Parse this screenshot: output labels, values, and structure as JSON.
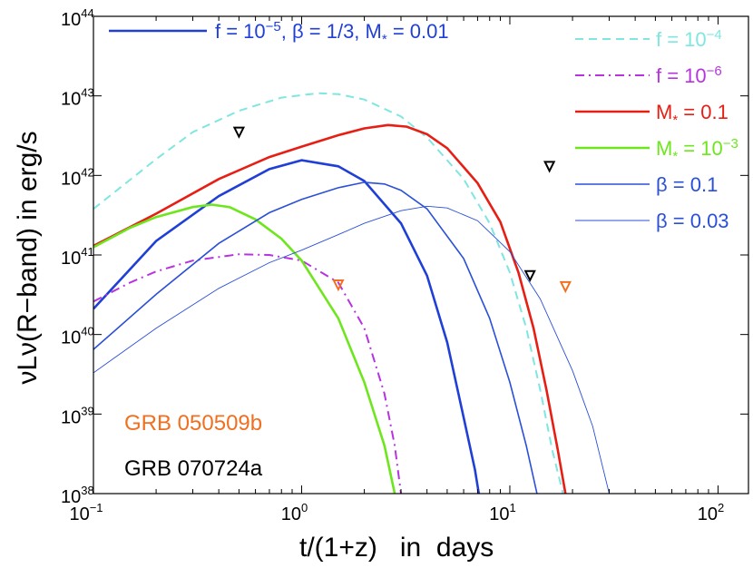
{
  "chart_data": {
    "type": "line",
    "title": "",
    "xlabel": "t/(1+z)   in  days",
    "ylabel": "νLν(R−band) in erg/s",
    "xscale": "log",
    "yscale": "log",
    "xlim": [
      0.1,
      140
    ],
    "ylim": [
      1e+38,
      1e+44
    ],
    "x_ticks": [
      {
        "value": 0.1,
        "base": "10",
        "exp": "−1"
      },
      {
        "value": 1,
        "base": "10",
        "exp": "0"
      },
      {
        "value": 10,
        "base": "10",
        "exp": "1"
      },
      {
        "value": 100,
        "base": "10",
        "exp": "2"
      }
    ],
    "y_ticks": [
      {
        "value": 1e+38,
        "base": "10",
        "exp": "38"
      },
      {
        "value": 1e+39,
        "base": "10",
        "exp": "39"
      },
      {
        "value": 1e+40,
        "base": "10",
        "exp": "40"
      },
      {
        "value": 1e+41,
        "base": "10",
        "exp": "41"
      },
      {
        "value": 1e+42,
        "base": "10",
        "exp": "42"
      },
      {
        "value": 1e+43,
        "base": "10",
        "exp": "43"
      },
      {
        "value": 1e+44,
        "base": "10",
        "exp": "44"
      }
    ],
    "legend_placement": "top-right",
    "series": [
      {
        "id": "fiducial",
        "name": "f = 10−5, β = 1/3, M* = 0.01",
        "legend": {
          "parts": [
            {
              "t": "f = 10"
            },
            {
              "t": "−5",
              "sup": true
            },
            {
              "t": ", β = 1/3, M"
            },
            {
              "t": "*",
              "sub": true
            },
            {
              "t": " = 0.01"
            }
          ]
        },
        "color": "#1f3fd6",
        "style": "solid",
        "weight": "thick",
        "points": [
          [
            0.1,
            2.1e+40
          ],
          [
            0.2,
            1.5e+41
          ],
          [
            0.4,
            5.5e+41
          ],
          [
            0.7,
            1.2e+42
          ],
          [
            1.0,
            1.55e+42
          ],
          [
            1.5,
            1.3e+42
          ],
          [
            2.0,
            8.5e+41
          ],
          [
            3.0,
            2.5e+41
          ],
          [
            4.0,
            5.5e+40
          ],
          [
            5.0,
            8e+39
          ],
          [
            6.0,
            9e+38
          ],
          [
            6.8,
            2e+38
          ],
          [
            7.1,
            1e+38
          ]
        ]
      },
      {
        "id": "f1e-4",
        "name": "f = 10−4",
        "legend": {
          "parts": [
            {
              "t": "f = 10"
            },
            {
              "t": "−4",
              "sup": true
            }
          ]
        },
        "color": "#7fe6e0",
        "style": "dashed",
        "weight": "medium",
        "points": [
          [
            0.1,
            3.8e+41
          ],
          [
            0.2,
            1.6e+42
          ],
          [
            0.3,
            3.5e+42
          ],
          [
            0.5,
            6.5e+42
          ],
          [
            0.8,
            9.5e+42
          ],
          [
            1.2,
            1.08e+43
          ],
          [
            1.5,
            1.05e+43
          ],
          [
            2.0,
            9e+42
          ],
          [
            3.0,
            5.5e+42
          ],
          [
            4.0,
            3e+42
          ],
          [
            6.0,
            9e+41
          ],
          [
            8.0,
            2.5e+41
          ],
          [
            10.0,
            6e+40
          ],
          [
            12.0,
            1.2e+40
          ],
          [
            14.0,
            2e+39
          ],
          [
            16.0,
            3.5e+38
          ],
          [
            18.0,
            1e+38
          ]
        ]
      },
      {
        "id": "f1e-6",
        "name": "f = 10−6",
        "legend": {
          "parts": [
            {
              "t": "f = 10"
            },
            {
              "t": "−6",
              "sup": true
            }
          ]
        },
        "color": "#b833e0",
        "style": "dashdot",
        "weight": "medium",
        "points": [
          [
            0.1,
            2.6e+40
          ],
          [
            0.15,
            4.5e+40
          ],
          [
            0.2,
            6.2e+40
          ],
          [
            0.3,
            8.5e+40
          ],
          [
            0.5,
            1.02e+41
          ],
          [
            0.7,
            1e+41
          ],
          [
            1.0,
            8.5e+40
          ],
          [
            1.5,
            4.5e+40
          ],
          [
            2.0,
            1.2e+40
          ],
          [
            2.5,
            1.8e+39
          ],
          [
            2.8,
            4e+38
          ],
          [
            3.0,
            1e+38
          ]
        ]
      },
      {
        "id": "M0.1",
        "name": "M* = 0.1",
        "legend": {
          "parts": [
            {
              "t": "M"
            },
            {
              "t": "*",
              "sub": true
            },
            {
              "t": " = 0.1"
            }
          ]
        },
        "color": "#e61e14",
        "style": "solid",
        "weight": "thick",
        "points": [
          [
            0.1,
            1.3e+41
          ],
          [
            0.2,
            3.3e+41
          ],
          [
            0.4,
            9e+41
          ],
          [
            0.7,
            1.7e+42
          ],
          [
            1.0,
            2.3e+42
          ],
          [
            1.5,
            3.2e+42
          ],
          [
            2.0,
            3.9e+42
          ],
          [
            2.6,
            4.3e+42
          ],
          [
            3.2,
            4.1e+42
          ],
          [
            4.0,
            3.3e+42
          ],
          [
            5.0,
            2.2e+42
          ],
          [
            7.0,
            8e+41
          ],
          [
            9.0,
            2.6e+41
          ],
          [
            11.0,
            6e+40
          ],
          [
            13.0,
            1.2e+40
          ],
          [
            15.0,
            2e+39
          ],
          [
            17.0,
            3.5e+38
          ],
          [
            18.5,
            1e+38
          ]
        ]
      },
      {
        "id": "M1e-3",
        "name": "M* = 10−3",
        "legend": {
          "parts": [
            {
              "t": "M"
            },
            {
              "t": "*",
              "sub": true
            },
            {
              "t": " = 10"
            },
            {
              "t": "−3",
              "sup": true
            }
          ]
        },
        "color": "#6ee61e",
        "style": "solid",
        "weight": "thick",
        "points": [
          [
            0.1,
            1.25e+41
          ],
          [
            0.15,
            2.2e+41
          ],
          [
            0.2,
            3e+41
          ],
          [
            0.3,
            4e+41
          ],
          [
            0.37,
            4.3e+41
          ],
          [
            0.45,
            4e+41
          ],
          [
            0.6,
            2.8e+41
          ],
          [
            0.8,
            1.6e+41
          ],
          [
            1.0,
            8.5e+40
          ],
          [
            1.5,
            1.6e+40
          ],
          [
            2.0,
            2.5e+39
          ],
          [
            2.5,
            4e+38
          ],
          [
            2.8,
            1e+38
          ]
        ]
      },
      {
        "id": "beta0.1",
        "name": "β = 0.1",
        "legend": {
          "parts": [
            {
              "t": "β = 0.1"
            }
          ]
        },
        "color": "#2a4fd8",
        "style": "solid",
        "weight": "thin",
        "points": [
          [
            0.1,
            6.5e+39
          ],
          [
            0.2,
            3.2e+40
          ],
          [
            0.4,
            1.4e+41
          ],
          [
            0.7,
            3.4e+41
          ],
          [
            1.0,
            5e+41
          ],
          [
            1.5,
            7e+41
          ],
          [
            2.0,
            8.2e+41
          ],
          [
            2.5,
            7.8e+41
          ],
          [
            3.0,
            6.5e+41
          ],
          [
            4.0,
            3.8e+41
          ],
          [
            6.0,
            9e+40
          ],
          [
            8.0,
            1.6e+40
          ],
          [
            10.0,
            2.5e+39
          ],
          [
            12.0,
            4e+38
          ],
          [
            13.5,
            1e+38
          ]
        ]
      },
      {
        "id": "beta0.03",
        "name": "β = 0.03",
        "legend": {
          "parts": [
            {
              "t": "β = 0.03"
            }
          ]
        },
        "color": "#2a4fd8",
        "style": "solid",
        "weight": "hair",
        "points": [
          [
            0.1,
            3.3e+39
          ],
          [
            0.2,
            1.2e+40
          ],
          [
            0.4,
            3.8e+40
          ],
          [
            0.7,
            8e+40
          ],
          [
            1.0,
            1.15e+41
          ],
          [
            1.5,
            1.8e+41
          ],
          [
            2.0,
            2.5e+41
          ],
          [
            3.0,
            3.6e+41
          ],
          [
            4.0,
            4.1e+41
          ],
          [
            5.0,
            3.9e+41
          ],
          [
            7.0,
            2.7e+41
          ],
          [
            10.0,
            1.1e+41
          ],
          [
            14.0,
            2.8e+40
          ],
          [
            20.0,
            3.5e+39
          ],
          [
            25.0,
            7e+38
          ],
          [
            30.0,
            1e+38
          ]
        ]
      }
    ],
    "markers": [
      {
        "name": "GRB 070724a upper limit",
        "x": 0.5,
        "y": 3.5e+42,
        "color": "#000000"
      },
      {
        "name": "GRB 070724a upper limit",
        "x": 15.5,
        "y": 1.3e+42,
        "color": "#000000"
      },
      {
        "name": "GRB 070724a upper limit",
        "x": 12.5,
        "y": 5.5e+40,
        "color": "#000000"
      },
      {
        "name": "GRB 050509b upper limit",
        "x": 1.5,
        "y": 4.2e+40,
        "color": "#f07020"
      },
      {
        "name": "GRB 050509b upper limit",
        "x": 18.5,
        "y": 4e+40,
        "color": "#f07020"
      }
    ],
    "annotations": [
      {
        "id": "grb050509b",
        "text": "GRB 050509b",
        "color": "#f07020"
      },
      {
        "id": "grb070724a",
        "text": "GRB 070724a",
        "color": "#000000"
      }
    ]
  }
}
